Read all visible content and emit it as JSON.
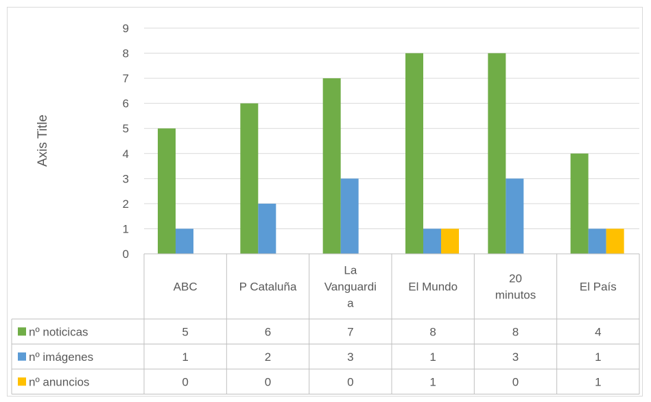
{
  "chart_data": {
    "type": "bar",
    "title": "",
    "ylabel": "Axis Title",
    "xlabel": "",
    "ylim": [
      0,
      9
    ],
    "yticks": [
      0,
      1,
      2,
      3,
      4,
      5,
      6,
      7,
      8,
      9
    ],
    "grid": true,
    "legend": "data-table",
    "categories": [
      "ABC",
      "P Cataluña",
      "La Vanguardia",
      "El Mundo",
      "20 minutos",
      "El País"
    ],
    "category_lines": [
      [
        "ABC"
      ],
      [
        "P Cataluña"
      ],
      [
        "La",
        "Vanguardi",
        "a"
      ],
      [
        "El Mundo"
      ],
      [
        "20",
        "minutos"
      ],
      [
        "El País"
      ]
    ],
    "series": [
      {
        "name": "nº noticicas",
        "color": "#70ad47",
        "values": [
          5,
          6,
          7,
          8,
          8,
          4
        ]
      },
      {
        "name": "nº imágenes",
        "color": "#5b9bd5",
        "values": [
          1,
          2,
          3,
          1,
          3,
          1
        ]
      },
      {
        "name": "nº anuncios",
        "color": "#ffc000",
        "values": [
          0,
          0,
          0,
          1,
          0,
          1
        ]
      }
    ]
  }
}
